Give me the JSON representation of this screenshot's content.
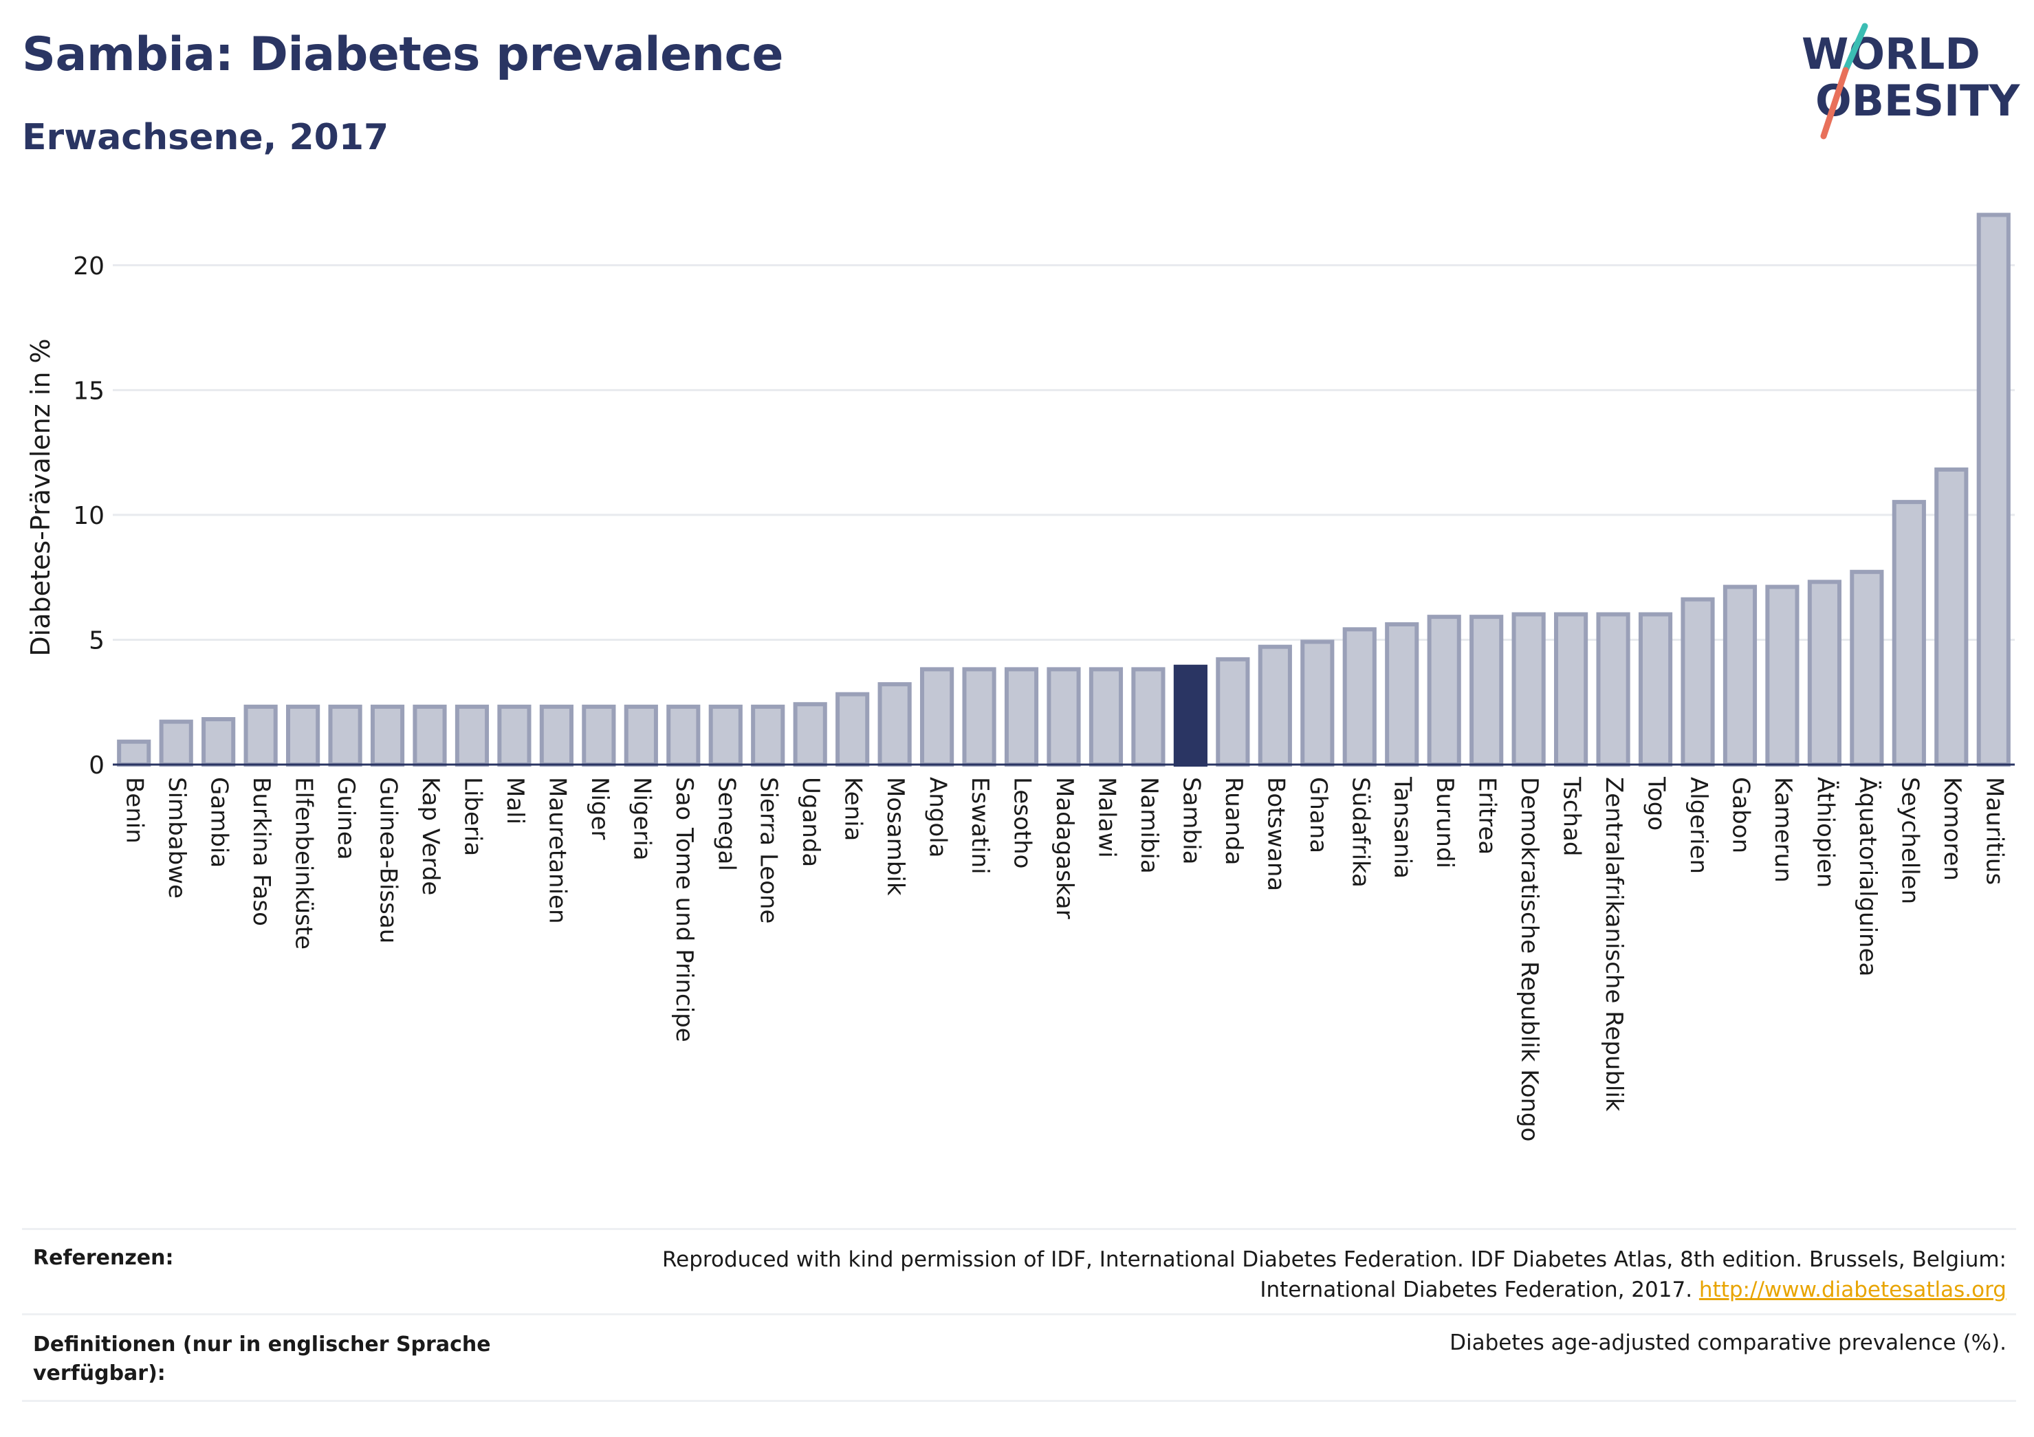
{
  "header": {
    "title": "Sambia: Diabetes prevalence",
    "subtitle": "Erwachsene, 2017",
    "logo_line1": "WORLD",
    "logo_line2": "OBESITY"
  },
  "colors": {
    "title": "#2a3563",
    "bar_fill": "#c3c7d4",
    "bar_stroke": "#9aa0b8",
    "highlight": "#2a3563",
    "link": "#e8a400",
    "logo_teal": "#3bbdb3",
    "logo_coral": "#e8705a"
  },
  "chart_data": {
    "type": "bar",
    "ylabel": "Diabetes-Prävalenz in %",
    "xlabel": "",
    "ylim": [
      0,
      22.5
    ],
    "yticks": [
      0,
      5,
      10,
      15,
      20
    ],
    "grid": true,
    "highlight": "Sambia",
    "categories": [
      "Benin",
      "Simbabwe",
      "Gambia",
      "Burkina Faso",
      "Elfenbeinküste",
      "Guinea",
      "Guinea-Bissau",
      "Kap Verde",
      "Liberia",
      "Mali",
      "Mauretanien",
      "Niger",
      "Nigeria",
      "Sao Tome und Principe",
      "Senegal",
      "Sierra Leone",
      "Uganda",
      "Kenia",
      "Mosambik",
      "Angola",
      "Eswatini",
      "Lesotho",
      "Madagaskar",
      "Malawi",
      "Namibia",
      "Sambia",
      "Ruanda",
      "Botswana",
      "Ghana",
      "Südafrika",
      "Tansania",
      "Burundi",
      "Eritrea",
      "Demokratische Republik Kongo",
      "Tschad",
      "Zentralafrikanische Republik",
      "Togo",
      "Algerien",
      "Gabon",
      "Kamerun",
      "Äthiopien",
      "Äquatorialguinea",
      "Seychellen",
      "Komoren",
      "Mauritius"
    ],
    "values": [
      1.0,
      1.8,
      1.9,
      2.4,
      2.4,
      2.4,
      2.4,
      2.4,
      2.4,
      2.4,
      2.4,
      2.4,
      2.4,
      2.4,
      2.4,
      2.4,
      2.5,
      2.9,
      3.3,
      3.9,
      3.9,
      3.9,
      3.9,
      3.9,
      3.9,
      4.0,
      4.3,
      4.8,
      5.0,
      5.5,
      5.7,
      6.0,
      6.0,
      6.1,
      6.1,
      6.1,
      6.1,
      6.7,
      7.2,
      7.2,
      7.4,
      7.8,
      10.6,
      11.9,
      22.1
    ]
  },
  "footer": {
    "references_label": "Referenzen:",
    "references_text_1": "Reproduced with kind permission of IDF, International Diabetes Federation. IDF Diabetes Atlas, 8th edition. Brussels, Belgium:",
    "references_text_2": "International Diabetes Federation, 2017.",
    "references_link": "http://www.diabetesatlas.org",
    "definitions_label": "Definitionen (nur in englischer Sprache verfügbar):",
    "definitions_text": "Diabetes age-adjusted comparative prevalence (%)."
  }
}
